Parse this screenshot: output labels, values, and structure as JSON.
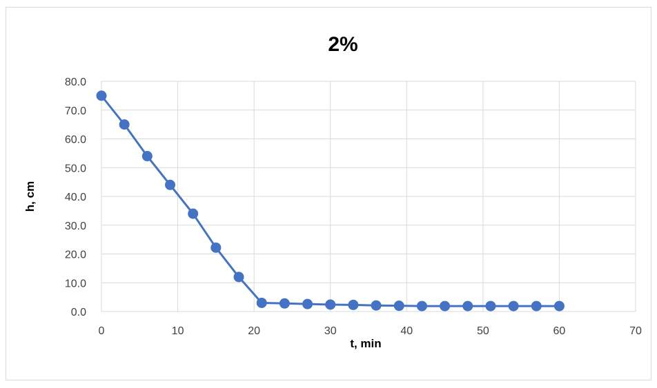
{
  "chart_data": {
    "type": "scatter",
    "title": "2%",
    "xlabel": "t, min",
    "ylabel": "h, cm",
    "xlim": [
      0,
      70
    ],
    "ylim": [
      0,
      80
    ],
    "xticks": [
      0,
      10,
      20,
      30,
      40,
      50,
      60,
      70
    ],
    "xtick_labels": [
      "0",
      "10",
      "20",
      "30",
      "40",
      "50",
      "60",
      "70"
    ],
    "yticks": [
      0,
      10,
      20,
      30,
      40,
      50,
      60,
      70,
      80
    ],
    "ytick_labels": [
      "0.0",
      "10.0",
      "20.0",
      "30.0",
      "40.0",
      "50.0",
      "60.0",
      "70.0",
      "80.0"
    ],
    "grid": true,
    "legend": "none",
    "colors": {
      "series": "#4472c4",
      "grid": "#d9d9d9",
      "frame": "#d9d9d9"
    },
    "series": [
      {
        "x": [
          0,
          3,
          6,
          9,
          12,
          15,
          18,
          21,
          24,
          27,
          30,
          33,
          36,
          39,
          42,
          45,
          48,
          51,
          54,
          57,
          60
        ],
        "y": [
          75.0,
          65.0,
          54.0,
          44.0,
          34.0,
          22.2,
          12.0,
          3.0,
          2.8,
          2.6,
          2.4,
          2.3,
          2.1,
          2.0,
          1.9,
          1.9,
          1.9,
          1.9,
          1.9,
          1.9,
          1.9
        ],
        "line": true,
        "marker": "circle"
      }
    ]
  }
}
